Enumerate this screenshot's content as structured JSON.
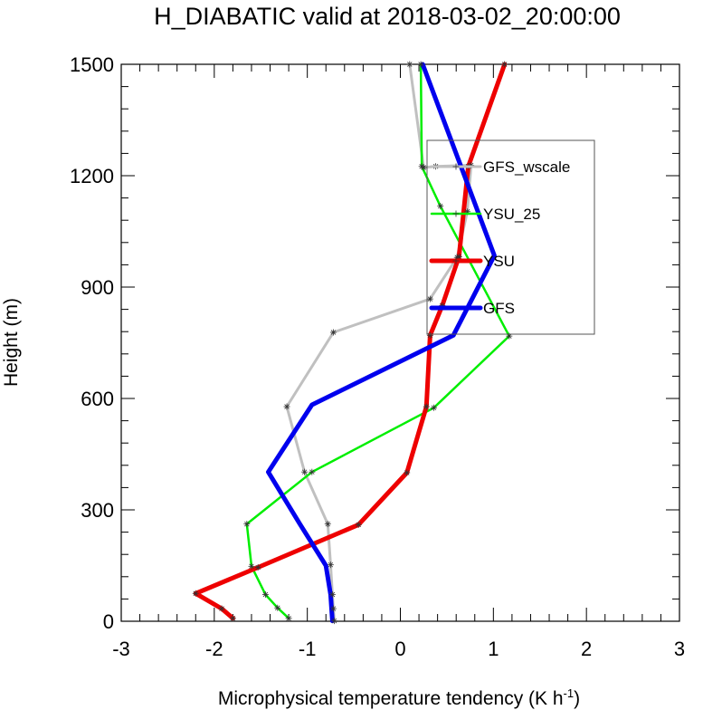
{
  "chart_data": {
    "type": "line",
    "title": "H_DIABATIC valid at 2018-03-02_20:00:00",
    "xlabel": "Microphysical temperature tendency (K h",
    "xlabel_sup": "-1",
    "xlabel_close": ")",
    "ylabel": "Height (m)",
    "xlim": [
      -3,
      3
    ],
    "ylim": [
      0,
      1500
    ],
    "x_ticks": [
      -3,
      -2,
      -1,
      0,
      1,
      2,
      3
    ],
    "y_ticks": [
      0,
      300,
      600,
      900,
      1200,
      1500
    ],
    "x_tick_labels": [
      "-3",
      "-2",
      "-1",
      "0",
      "1",
      "2",
      "3"
    ],
    "y_tick_labels": [
      "0",
      "300",
      "600",
      "900",
      "1200",
      "1500"
    ],
    "grid": false,
    "legend_position": "upper-right",
    "series": [
      {
        "name": "GFS_wscale",
        "color": "#c0c0c0",
        "markers": true,
        "x": [
          -0.71,
          -0.72,
          -0.73,
          -0.75,
          -0.78,
          -1.03,
          -1.22,
          -0.72,
          0.32,
          0.61,
          0.72,
          0.76,
          0.38,
          0.25,
          0.1
        ],
        "y": [
          1,
          34,
          72,
          152,
          262,
          402,
          578,
          778,
          868,
          980,
          1103,
          1228,
          1225,
          1222,
          1500
        ]
      },
      {
        "name": "YSU_25",
        "color": "#00ee00",
        "markers": true,
        "x": [
          -1.2,
          -1.32,
          -1.45,
          -1.6,
          -1.65,
          -0.95,
          0.36,
          1.17,
          0.43,
          0.23,
          0.22
        ],
        "y": [
          8,
          36,
          72,
          148,
          262,
          402,
          575,
          768,
          1118,
          1225,
          1500
        ]
      },
      {
        "name": "YSU",
        "color": "#ee0000",
        "markers": true,
        "x": [
          -1.8,
          -1.92,
          -2.2,
          -1.53,
          -0.45,
          0.07,
          0.28,
          0.32,
          0.45,
          0.63,
          0.73,
          1.12
        ],
        "y": [
          8,
          34,
          75,
          145,
          260,
          400,
          578,
          770,
          850,
          982,
          1225,
          1500
        ]
      },
      {
        "name": "GFS",
        "color": "#0000ee",
        "markers": false,
        "x": [
          -0.73,
          -0.74,
          -0.75,
          -0.8,
          -1.08,
          -1.42,
          -0.95,
          0.57,
          1.01,
          0.24
        ],
        "y": [
          1,
          36,
          72,
          150,
          262,
          402,
          583,
          770,
          985,
          1500
        ]
      }
    ]
  }
}
